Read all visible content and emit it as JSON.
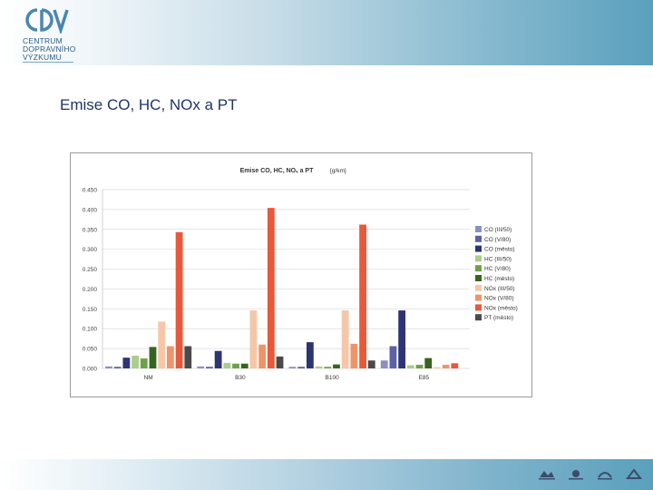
{
  "header": {
    "logo_letters": "CDV",
    "logo_lines": [
      "CENTRUM",
      "DOPRAVNÍHO",
      "VÝZKUMU"
    ]
  },
  "page_title": "Emise  CO, HC, NOx a PT",
  "colors": {
    "background": "#ffffff",
    "band": "#5aa0bd",
    "title": "#1f3566"
  },
  "chart_data": {
    "type": "bar",
    "title": "Emise CO, HC, NOₓ a PT",
    "unit": "[g/km]",
    "categories": [
      "NM",
      "B30",
      "B100",
      "E85"
    ],
    "ylim": [
      0,
      0.45
    ],
    "yticks": [
      "0.000",
      "0.050",
      "0.100",
      "0.150",
      "0.200",
      "0.250",
      "0.300",
      "0.350",
      "0.400",
      "0.450"
    ],
    "grid": true,
    "legend_position": "right",
    "series": [
      {
        "name": "CO (III/50)",
        "color": "#8d8fc4",
        "values": [
          0.005,
          0.005,
          0.004,
          0.02
        ]
      },
      {
        "name": "CO (V/80)",
        "color": "#5d62a6",
        "values": [
          0.004,
          0.004,
          0.004,
          0.056
        ]
      },
      {
        "name": "CO (město)",
        "color": "#2e3473",
        "values": [
          0.027,
          0.044,
          0.066,
          0.146
        ]
      },
      {
        "name": "HC (III/50)",
        "color": "#a8cf8b",
        "values": [
          0.032,
          0.014,
          0.005,
          0.008
        ]
      },
      {
        "name": "HC (V/80)",
        "color": "#6ea149",
        "values": [
          0.025,
          0.012,
          0.004,
          0.009
        ]
      },
      {
        "name": "HC (město)",
        "color": "#37641f",
        "values": [
          0.054,
          0.012,
          0.01,
          0.026
        ]
      },
      {
        "name": "NOx (III/50)",
        "color": "#f5c7a8",
        "values": [
          0.118,
          0.146,
          0.146,
          0.003
        ]
      },
      {
        "name": "NOx (V/80)",
        "color": "#ed9469",
        "values": [
          0.056,
          0.06,
          0.062,
          0.009
        ]
      },
      {
        "name": "NOx (město)",
        "color": "#e8583a",
        "values": [
          0.343,
          0.404,
          0.362,
          0.013
        ]
      },
      {
        "name": "PT (město)",
        "color": "#4a4a4a",
        "values": [
          0.056,
          0.03,
          0.02,
          0.0
        ]
      }
    ]
  }
}
